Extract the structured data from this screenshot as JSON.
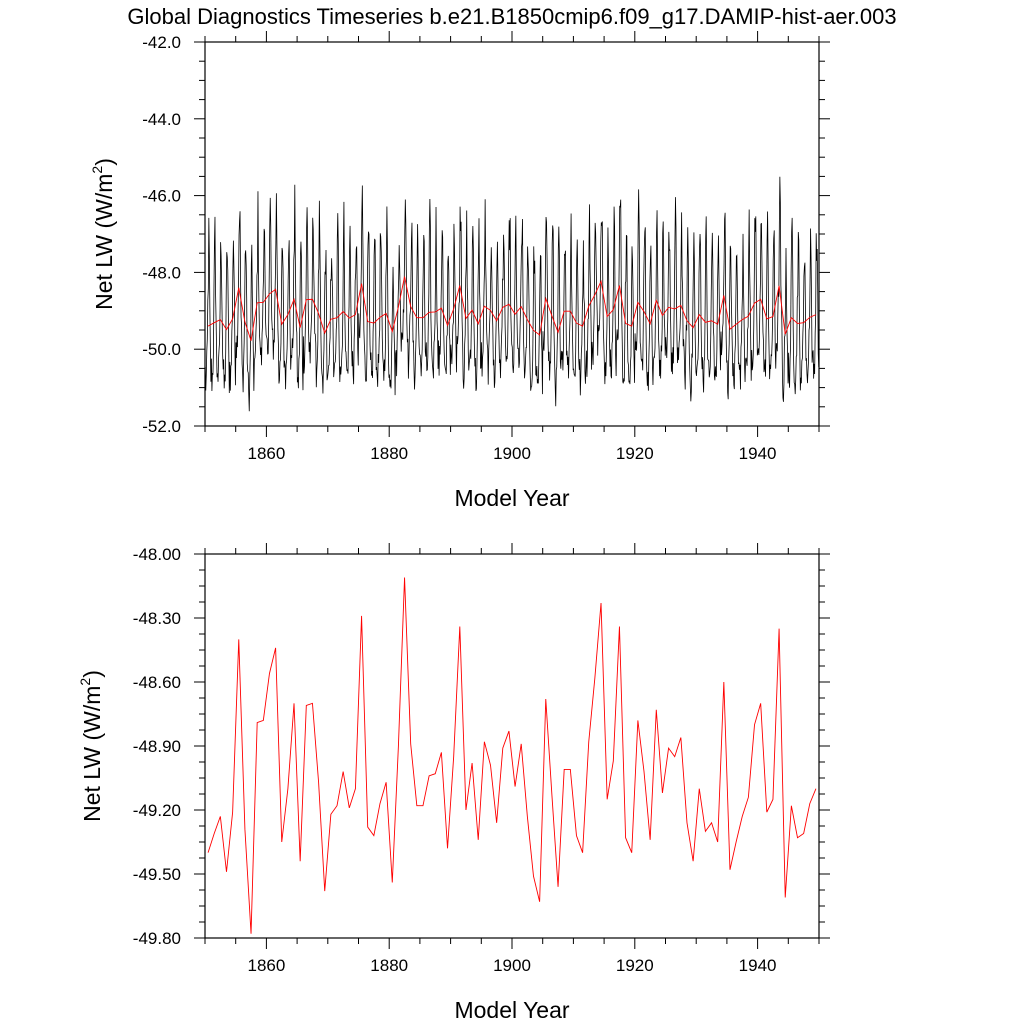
{
  "figure": {
    "title": "Global Diagnostics Timeseries b.e21.B1850cmip6.f09_g17.DAMIP-hist-aer.003"
  },
  "chart_data": [
    {
      "type": "line",
      "xlabel": "Model Year",
      "ylabel_main": "Net LW (W/m",
      "ylabel_sup": "2",
      "ylabel_close": ")",
      "xlim": [
        1850,
        1950
      ],
      "ylim": [
        -52.0,
        -42.0
      ],
      "xticks": [
        1860,
        1880,
        1900,
        1920,
        1940
      ],
      "xtick_labels": [
        "1860",
        "1880",
        "1900",
        "1920",
        "1940"
      ],
      "yticks": [
        -52.0,
        -50.0,
        -48.0,
        -46.0,
        -44.0,
        -42.0
      ],
      "ytick_labels": [
        "-52.0",
        "-50.0",
        "-48.0",
        "-46.0",
        "-44.0",
        "-42.0"
      ],
      "series": [
        {
          "kind": "monthly",
          "color": "#000000",
          "seasonal_cycle": [
            -50.3,
            -50.6,
            -50.5,
            -50.2,
            -49.6,
            -48.7,
            -47.6,
            -46.9,
            -47.6,
            -48.9,
            -49.9,
            -50.4
          ],
          "note_values": "monthly values = annual anomaly + seasonal cycle"
        },
        {
          "kind": "annual",
          "color": "#ff0000"
        }
      ]
    },
    {
      "type": "line",
      "xlabel": "Model Year",
      "ylabel_main": "Net LW (W/m",
      "ylabel_sup": "2",
      "ylabel_close": ")",
      "xlim": [
        1850,
        1950
      ],
      "ylim": [
        -49.8,
        -48.0
      ],
      "xticks": [
        1860,
        1880,
        1900,
        1920,
        1940
      ],
      "xtick_labels": [
        "1860",
        "1880",
        "1900",
        "1920",
        "1940"
      ],
      "yticks": [
        -49.8,
        -49.5,
        -49.2,
        -48.9,
        -48.6,
        -48.3,
        -48.0
      ],
      "ytick_labels": [
        "-49.80",
        "-49.50",
        "-49.20",
        "-48.90",
        "-48.60",
        "-48.30",
        "-48.00"
      ],
      "series": [
        {
          "kind": "annual",
          "color": "#ff0000",
          "x_start": 1850,
          "x_step": 1,
          "values": [
            -49.4,
            -49.31,
            -49.23,
            -49.49,
            -49.21,
            -48.4,
            -49.29,
            -49.78,
            -48.79,
            -48.78,
            -48.56,
            -48.44,
            -49.35,
            -49.1,
            -48.7,
            -49.44,
            -48.71,
            -48.7,
            -49.07,
            -49.58,
            -49.22,
            -49.18,
            -49.02,
            -49.19,
            -49.1,
            -48.29,
            -49.28,
            -49.32,
            -49.17,
            -49.07,
            -49.54,
            -48.9,
            -48.11,
            -48.89,
            -49.18,
            -49.18,
            -49.04,
            -49.03,
            -48.93,
            -49.38,
            -48.95,
            -48.34,
            -49.2,
            -48.98,
            -49.34,
            -48.88,
            -48.99,
            -49.26,
            -48.91,
            -48.83,
            -49.09,
            -48.89,
            -49.23,
            -49.51,
            -49.63,
            -48.68,
            -49.13,
            -49.56,
            -49.01,
            -49.01,
            -49.32,
            -49.4,
            -48.88,
            -48.58,
            -48.23,
            -49.15,
            -48.97,
            -48.34,
            -49.33,
            -49.4,
            -48.78,
            -49.02,
            -49.34,
            -48.73,
            -49.12,
            -48.91,
            -48.95,
            -48.86,
            -49.26,
            -49.44,
            -49.1,
            -49.3,
            -49.26,
            -49.35,
            -48.6,
            -49.48,
            -49.35,
            -49.23,
            -49.14,
            -48.8,
            -48.7,
            -49.21,
            -49.15,
            -48.35,
            -49.61,
            -49.18,
            -49.33,
            -49.31,
            -49.17,
            -49.1
          ]
        }
      ]
    }
  ]
}
